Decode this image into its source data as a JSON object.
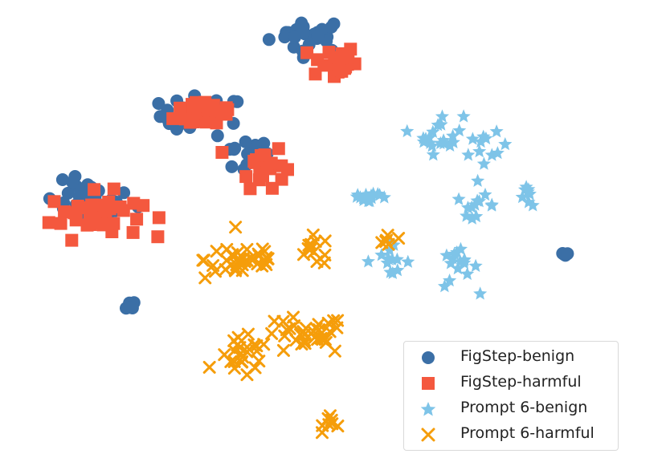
{
  "chart_data": {
    "type": "scatter",
    "title": "",
    "xlabel": "",
    "ylabel": "",
    "axes_visible": false,
    "grid": false,
    "legend_position": "bottom-right",
    "xlim": [
      0,
      100
    ],
    "ylim": [
      0,
      100
    ],
    "series": [
      {
        "name": "FigStep-benign",
        "marker": "circle",
        "color": "#3b6fa6",
        "clusters": [
          {
            "cx": 48,
            "cy": 94,
            "sx": 6.0,
            "sy": 3.5,
            "n": 24
          },
          {
            "cx": 30,
            "cy": 76,
            "sx": 6.5,
            "sy": 4.0,
            "n": 30
          },
          {
            "cx": 37,
            "cy": 67,
            "sx": 4.0,
            "sy": 3.5,
            "n": 16
          },
          {
            "cx": 11,
            "cy": 57,
            "sx": 7.0,
            "sy": 4.0,
            "n": 34
          },
          {
            "cx": 18,
            "cy": 34,
            "sx": 0.8,
            "sy": 1.0,
            "n": 5
          },
          {
            "cx": 91,
            "cy": 45,
            "sx": 0.5,
            "sy": 0.6,
            "n": 4
          }
        ]
      },
      {
        "name": "FigStep-harmful",
        "marker": "square",
        "color": "#f4583e",
        "clusters": [
          {
            "cx": 52,
            "cy": 88,
            "sx": 3.5,
            "sy": 3.5,
            "n": 26
          },
          {
            "cx": 31,
            "cy": 77,
            "sx": 5.0,
            "sy": 3.5,
            "n": 28
          },
          {
            "cx": 40,
            "cy": 65,
            "sx": 3.5,
            "sy": 4.5,
            "n": 22
          },
          {
            "cx": 12,
            "cy": 54,
            "sx": 7.0,
            "sy": 4.5,
            "n": 44
          }
        ]
      },
      {
        "name": "Prompt 6-benign",
        "marker": "star",
        "color": "#7ec4e8",
        "clusters": [
          {
            "cx": 70,
            "cy": 72,
            "sx": 3.5,
            "sy": 4.0,
            "n": 20
          },
          {
            "cx": 78,
            "cy": 68,
            "sx": 3.0,
            "sy": 3.5,
            "n": 12
          },
          {
            "cx": 58,
            "cy": 58,
            "sx": 3.5,
            "sy": 1.5,
            "n": 14
          },
          {
            "cx": 76,
            "cy": 56,
            "sx": 3.0,
            "sy": 2.0,
            "n": 12
          },
          {
            "cx": 85,
            "cy": 58,
            "sx": 1.5,
            "sy": 2.0,
            "n": 8
          },
          {
            "cx": 61,
            "cy": 44,
            "sx": 3.5,
            "sy": 3.0,
            "n": 14
          },
          {
            "cx": 73,
            "cy": 42,
            "sx": 3.0,
            "sy": 4.0,
            "n": 16
          }
        ]
      },
      {
        "name": "Prompt 6-harmful",
        "marker": "x",
        "color": "#f59d0a",
        "clusters": [
          {
            "cx": 37,
            "cy": 44,
            "sx": 6.0,
            "sy": 4.0,
            "n": 40
          },
          {
            "cx": 49,
            "cy": 46,
            "sx": 3.0,
            "sy": 3.0,
            "n": 12
          },
          {
            "cx": 47,
            "cy": 27,
            "sx": 6.5,
            "sy": 4.0,
            "n": 34
          },
          {
            "cx": 37,
            "cy": 22,
            "sx": 4.0,
            "sy": 4.0,
            "n": 24
          },
          {
            "cx": 52,
            "cy": 8,
            "sx": 1.5,
            "sy": 1.8,
            "n": 8
          },
          {
            "cx": 61,
            "cy": 48,
            "sx": 1.5,
            "sy": 2.0,
            "n": 6
          }
        ]
      }
    ]
  }
}
